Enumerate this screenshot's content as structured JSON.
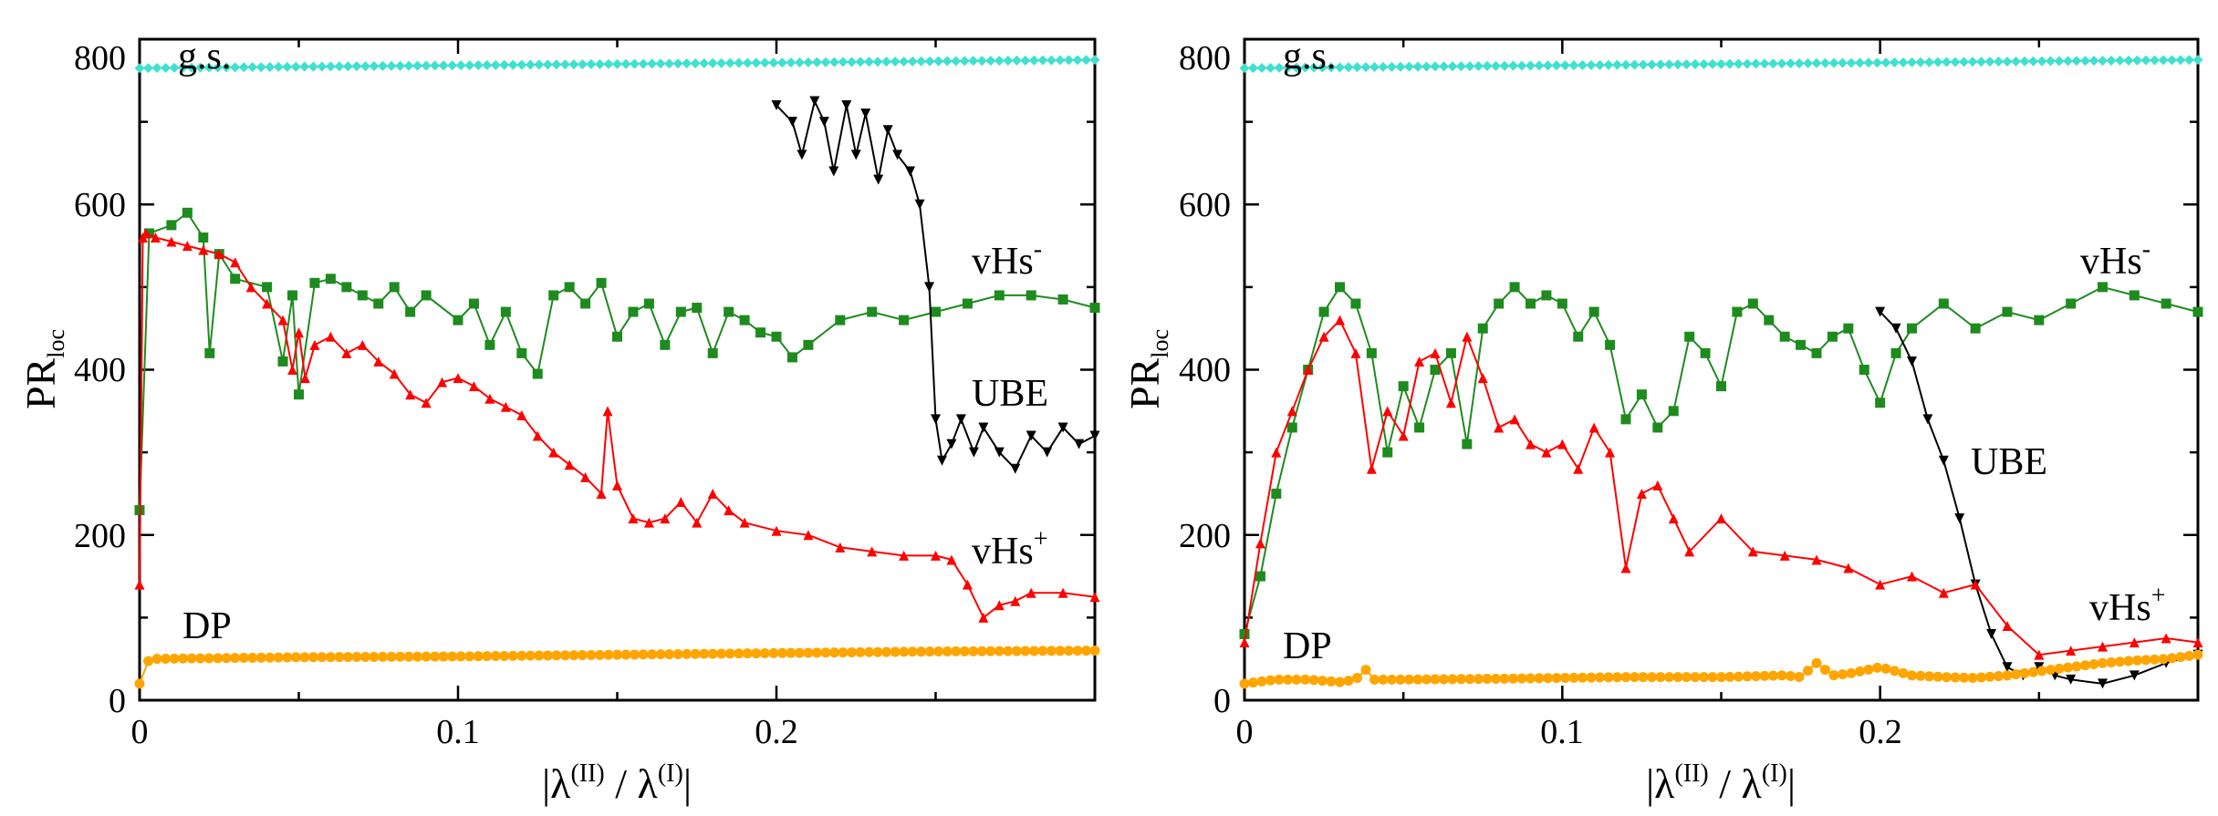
{
  "chart_data": [
    {
      "type": "line",
      "panel": "left",
      "xlabel": "|λ(II) / λ(I)|",
      "ylabel": "PRloc",
      "xlim": [
        0,
        0.3
      ],
      "ylim": [
        0,
        800
      ],
      "xticks": [
        "0",
        "0.1",
        "0.2"
      ],
      "yticks": [
        "0",
        "200",
        "400",
        "600",
        "800"
      ],
      "annotations": [
        "g.s.",
        "vHs",
        "UBE",
        "vHs",
        "DP"
      ],
      "annotation_sups": [
        "",
        "-",
        "",
        "+",
        ""
      ],
      "series": [
        {
          "name": "g.s.",
          "color": "#40E0D0",
          "marker": "diamond",
          "x": [
            0,
            0.3
          ],
          "y": [
            765,
            775
          ]
        },
        {
          "name": "vHs-",
          "color": "#1E8B1E",
          "marker": "square",
          "x": [
            0,
            0.003,
            0.01,
            0.015,
            0.02,
            0.022,
            0.025,
            0.03,
            0.04,
            0.045,
            0.048,
            0.05,
            0.055,
            0.06,
            0.065,
            0.07,
            0.075,
            0.08,
            0.085,
            0.09,
            0.1,
            0.105,
            0.11,
            0.115,
            0.12,
            0.125,
            0.13,
            0.135,
            0.14,
            0.145,
            0.15,
            0.155,
            0.16,
            0.165,
            0.17,
            0.175,
            0.18,
            0.185,
            0.19,
            0.195,
            0.2,
            0.205,
            0.21,
            0.22,
            0.23,
            0.24,
            0.25,
            0.26,
            0.27,
            0.28,
            0.29,
            0.3
          ],
          "y": [
            230,
            565,
            575,
            590,
            560,
            420,
            540,
            510,
            500,
            410,
            490,
            370,
            505,
            510,
            500,
            490,
            480,
            500,
            470,
            490,
            460,
            480,
            430,
            470,
            420,
            395,
            490,
            500,
            480,
            505,
            440,
            470,
            480,
            430,
            470,
            475,
            420,
            470,
            460,
            445,
            440,
            415,
            430,
            460,
            470,
            460,
            470,
            480,
            490,
            490,
            485,
            475
          ]
        },
        {
          "name": "UBE",
          "color": "#000000",
          "marker": "triangle-down",
          "x": [
            0.2,
            0.205,
            0.208,
            0.212,
            0.215,
            0.218,
            0.222,
            0.225,
            0.228,
            0.232,
            0.235,
            0.238,
            0.242,
            0.245,
            0.248,
            0.25,
            0.252,
            0.255,
            0.258,
            0.262,
            0.265,
            0.27,
            0.275,
            0.28,
            0.285,
            0.29,
            0.295,
            0.3
          ],
          "y": [
            720,
            700,
            660,
            725,
            700,
            640,
            720,
            660,
            710,
            630,
            690,
            660,
            640,
            600,
            500,
            340,
            290,
            310,
            340,
            300,
            330,
            300,
            280,
            320,
            300,
            330,
            310,
            320
          ]
        },
        {
          "name": "vHs+",
          "color": "#FF0000",
          "marker": "triangle-up",
          "x": [
            0,
            0.001,
            0.002,
            0.005,
            0.01,
            0.015,
            0.02,
            0.025,
            0.03,
            0.035,
            0.04,
            0.045,
            0.048,
            0.05,
            0.052,
            0.055,
            0.06,
            0.065,
            0.07,
            0.075,
            0.08,
            0.085,
            0.09,
            0.095,
            0.1,
            0.105,
            0.11,
            0.115,
            0.12,
            0.125,
            0.13,
            0.135,
            0.14,
            0.145,
            0.147,
            0.15,
            0.155,
            0.16,
            0.165,
            0.17,
            0.175,
            0.18,
            0.185,
            0.19,
            0.2,
            0.21,
            0.22,
            0.23,
            0.24,
            0.25,
            0.255,
            0.26,
            0.265,
            0.27,
            0.275,
            0.28,
            0.29,
            0.3
          ],
          "y": [
            140,
            560,
            565,
            560,
            555,
            550,
            545,
            540,
            530,
            500,
            480,
            460,
            400,
            445,
            390,
            430,
            440,
            420,
            430,
            410,
            395,
            370,
            360,
            385,
            390,
            380,
            365,
            355,
            345,
            320,
            300,
            285,
            270,
            250,
            350,
            260,
            220,
            215,
            220,
            240,
            215,
            250,
            230,
            215,
            205,
            200,
            185,
            180,
            175,
            175,
            170,
            140,
            100,
            115,
            120,
            130,
            130,
            125
          ]
        },
        {
          "name": "DP",
          "color": "#FFA500",
          "marker": "circle",
          "x": [
            0,
            0.003,
            0.05,
            0.1,
            0.15,
            0.2,
            0.25,
            0.3
          ],
          "y": [
            20,
            50,
            52,
            53,
            55,
            57,
            59,
            60
          ]
        }
      ]
    },
    {
      "type": "line",
      "panel": "right",
      "xlabel": "|λ(II) / λ(I)|",
      "ylabel": "PRloc",
      "xlim": [
        0,
        0.3
      ],
      "ylim": [
        0,
        800
      ],
      "xticks": [
        "0",
        "0.1",
        "0.2"
      ],
      "yticks": [
        "0",
        "200",
        "400",
        "600",
        "800"
      ],
      "annotations": [
        "g.s.",
        "vHs",
        "UBE",
        "vHs",
        "DP"
      ],
      "annotation_sups": [
        "",
        "-",
        "",
        "+",
        ""
      ],
      "series": [
        {
          "name": "g.s.",
          "color": "#40E0D0",
          "marker": "diamond",
          "x": [
            0,
            0.3
          ],
          "y": [
            765,
            775
          ]
        },
        {
          "name": "vHs-",
          "color": "#1E8B1E",
          "marker": "square",
          "x": [
            0,
            0.005,
            0.01,
            0.015,
            0.02,
            0.025,
            0.03,
            0.035,
            0.04,
            0.045,
            0.05,
            0.055,
            0.06,
            0.065,
            0.07,
            0.075,
            0.08,
            0.085,
            0.09,
            0.095,
            0.1,
            0.105,
            0.11,
            0.115,
            0.12,
            0.125,
            0.13,
            0.135,
            0.14,
            0.145,
            0.15,
            0.155,
            0.16,
            0.165,
            0.17,
            0.175,
            0.18,
            0.185,
            0.19,
            0.195,
            0.2,
            0.205,
            0.21,
            0.22,
            0.23,
            0.24,
            0.25,
            0.26,
            0.27,
            0.28,
            0.29,
            0.3
          ],
          "y": [
            80,
            150,
            250,
            330,
            400,
            470,
            500,
            480,
            420,
            300,
            380,
            330,
            400,
            420,
            310,
            450,
            480,
            500,
            480,
            490,
            480,
            440,
            470,
            430,
            340,
            370,
            330,
            350,
            440,
            420,
            380,
            470,
            480,
            460,
            440,
            430,
            420,
            440,
            450,
            400,
            360,
            420,
            450,
            480,
            450,
            470,
            460,
            480,
            500,
            490,
            480,
            470
          ]
        },
        {
          "name": "UBE",
          "color": "#000000",
          "marker": "triangle-down",
          "x": [
            0.2,
            0.205,
            0.21,
            0.215,
            0.22,
            0.225,
            0.23,
            0.235,
            0.24,
            0.245,
            0.25,
            0.255,
            0.26,
            0.27,
            0.28,
            0.29,
            0.3
          ],
          "y": [
            470,
            450,
            410,
            340,
            290,
            220,
            140,
            80,
            40,
            30,
            40,
            30,
            25,
            20,
            30,
            45,
            55
          ]
        },
        {
          "name": "vHs+",
          "color": "#FF0000",
          "marker": "triangle-up",
          "x": [
            0,
            0.005,
            0.01,
            0.015,
            0.02,
            0.025,
            0.03,
            0.035,
            0.04,
            0.045,
            0.05,
            0.055,
            0.06,
            0.065,
            0.07,
            0.075,
            0.08,
            0.085,
            0.09,
            0.095,
            0.1,
            0.105,
            0.11,
            0.115,
            0.12,
            0.125,
            0.13,
            0.135,
            0.14,
            0.15,
            0.16,
            0.17,
            0.18,
            0.19,
            0.2,
            0.21,
            0.22,
            0.23,
            0.24,
            0.25,
            0.26,
            0.27,
            0.28,
            0.29,
            0.3
          ],
          "y": [
            70,
            190,
            300,
            350,
            400,
            440,
            460,
            420,
            280,
            350,
            320,
            410,
            420,
            360,
            440,
            390,
            330,
            340,
            310,
            300,
            310,
            280,
            330,
            300,
            160,
            250,
            260,
            220,
            180,
            220,
            180,
            175,
            170,
            160,
            140,
            150,
            130,
            140,
            90,
            55,
            60,
            65,
            70,
            75,
            70
          ]
        },
        {
          "name": "DP",
          "color": "#FFA500",
          "marker": "circle",
          "x": [
            0,
            0.01,
            0.02,
            0.03,
            0.035,
            0.038,
            0.04,
            0.05,
            0.08,
            0.1,
            0.12,
            0.15,
            0.17,
            0.175,
            0.18,
            0.185,
            0.19,
            0.2,
            0.21,
            0.22,
            0.23,
            0.24,
            0.25,
            0.26,
            0.27,
            0.28,
            0.29,
            0.3
          ],
          "y": [
            20,
            25,
            25,
            22,
            25,
            38,
            25,
            25,
            26,
            27,
            28,
            28,
            30,
            28,
            45,
            30,
            32,
            40,
            30,
            28,
            27,
            30,
            35,
            40,
            45,
            48,
            50,
            55
          ]
        }
      ]
    }
  ],
  "labels": {
    "left": {
      "ylabel_main": "PR",
      "ylabel_sub": "loc",
      "x_pre": "|λ",
      "x_sup1": "(II)",
      "x_mid": " / λ",
      "x_sup2": "(I)",
      "x_post": "|",
      "gs": "g.s.",
      "vhs_minus": "vHs",
      "vhs_minus_sup": "-",
      "ube": "UBE",
      "vhs_plus": "vHs",
      "vhs_plus_sup": "+",
      "dp": "DP"
    },
    "right": {
      "ylabel_main": "PR",
      "ylabel_sub": "loc",
      "x_pre": "|λ",
      "x_sup1": "(II)",
      "x_mid": " / λ",
      "x_sup2": "(I)",
      "x_post": "|",
      "gs": "g.s.",
      "vhs_minus": "vHs",
      "vhs_minus_sup": "-",
      "ube": "UBE",
      "vhs_plus": "vHs",
      "vhs_plus_sup": "+",
      "dp": "DP"
    },
    "ticks": {
      "x0": "0",
      "x1": "0.1",
      "x2": "0.2",
      "y0": "0",
      "y1": "200",
      "y2": "400",
      "y3": "600",
      "y4": "800"
    }
  }
}
